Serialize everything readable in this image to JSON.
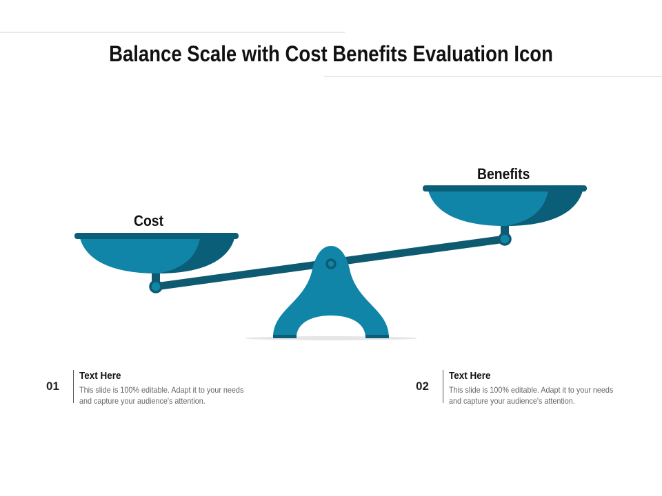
{
  "header": {
    "title": "Balance Scale with Cost Benefits Evaluation Icon"
  },
  "scale": {
    "left_label": "Cost",
    "right_label": "Benefits"
  },
  "items": [
    {
      "number": "01",
      "heading": "Text Here",
      "body": "This slide is 100% editable. Adapt it to your needs and capture your audience's attention."
    },
    {
      "number": "02",
      "heading": "Text Here",
      "body": "This slide is 100% editable. Adapt it to your needs and capture your audience's attention."
    }
  ]
}
